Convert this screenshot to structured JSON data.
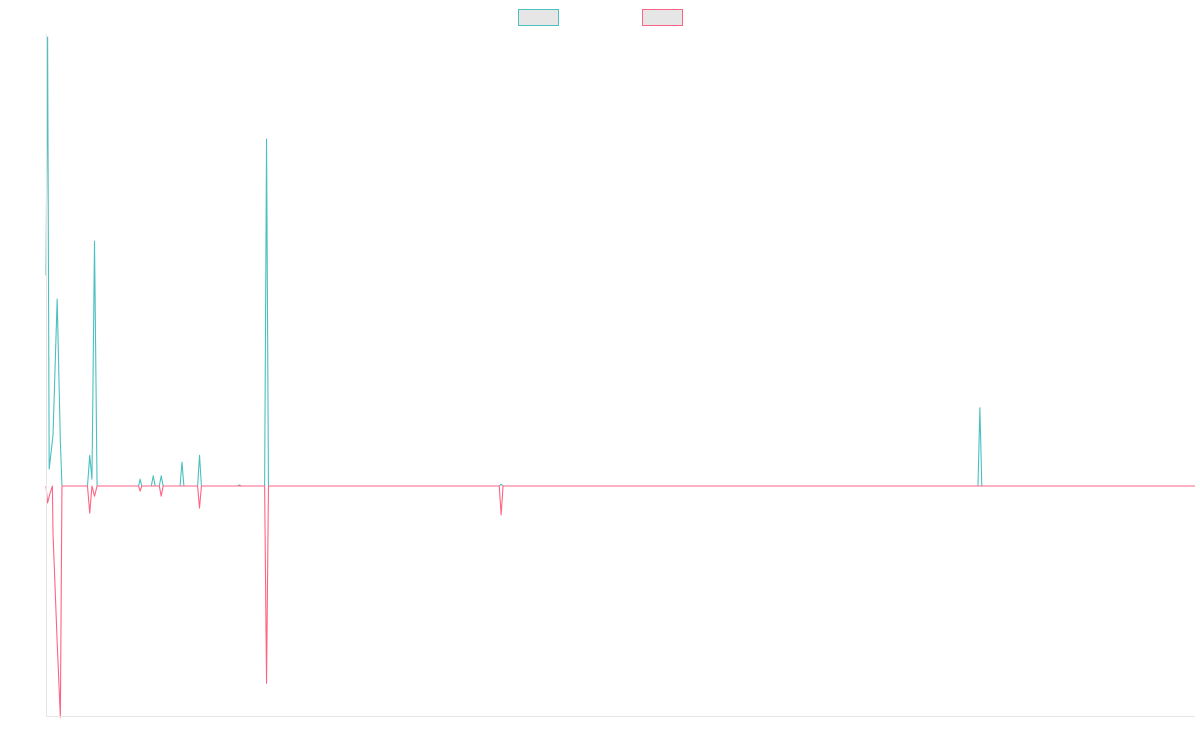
{
  "chart_data": {
    "type": "line",
    "title": "",
    "xlabel": "",
    "ylabel": "",
    "legend_position": "top-center",
    "grid": false,
    "x_range": [
      0,
      360
    ],
    "ylim": [
      -1.0,
      1.0
    ],
    "baseline": 0,
    "series": [
      {
        "color": "#4bc0c0",
        "legend_fill": "#e6e6e6",
        "points": [
          [
            0,
            0.62
          ],
          [
            0.5,
            1.32
          ],
          [
            1,
            0.05
          ],
          [
            2.2,
            0.15
          ],
          [
            3.5,
            0.55
          ],
          [
            4.5,
            0.13
          ],
          [
            5,
            0
          ],
          [
            13,
            0
          ],
          [
            13.7,
            0.09
          ],
          [
            14.4,
            0.02
          ],
          [
            15.2,
            0.72
          ],
          [
            16,
            0
          ],
          [
            29,
            0
          ],
          [
            29.5,
            0.02
          ],
          [
            30,
            0
          ],
          [
            33,
            0
          ],
          [
            33.6,
            0.03
          ],
          [
            34.2,
            0
          ],
          [
            35.5,
            0
          ],
          [
            36.1,
            0.03
          ],
          [
            36.7,
            0
          ],
          [
            42,
            0
          ],
          [
            42.6,
            0.07
          ],
          [
            43.2,
            0
          ],
          [
            47.5,
            0
          ],
          [
            48.1,
            0.09
          ],
          [
            48.7,
            0
          ],
          [
            60,
            0
          ],
          [
            60.6,
            0.003
          ],
          [
            61.2,
            0
          ],
          [
            68.5,
            0
          ],
          [
            69.1,
            1.02
          ],
          [
            69.7,
            0
          ],
          [
            142,
            0
          ],
          [
            142.6,
            0.005
          ],
          [
            143.2,
            0
          ],
          [
            292,
            0
          ],
          [
            292.6,
            0.23
          ],
          [
            293.2,
            0
          ],
          [
            360,
            0
          ]
        ]
      },
      {
        "color": "#ff6384",
        "legend_fill": "#e6e6e6",
        "points": [
          [
            0,
            0
          ],
          [
            0.5,
            -0.05
          ],
          [
            1,
            -0.03
          ],
          [
            2,
            0
          ],
          [
            2.2,
            -0.14
          ],
          [
            3.5,
            -0.46
          ],
          [
            4.5,
            -0.68
          ],
          [
            5,
            0
          ],
          [
            13,
            0
          ],
          [
            13.7,
            -0.08
          ],
          [
            14.4,
            0
          ],
          [
            15.2,
            -0.03
          ],
          [
            16,
            0
          ],
          [
            29,
            0
          ],
          [
            29.5,
            -0.015
          ],
          [
            30,
            0
          ],
          [
            35.5,
            0
          ],
          [
            36.1,
            -0.03
          ],
          [
            36.7,
            0
          ],
          [
            47.5,
            0
          ],
          [
            48.1,
            -0.065
          ],
          [
            48.7,
            0
          ],
          [
            68.5,
            0
          ],
          [
            69.1,
            -0.58
          ],
          [
            69.7,
            0
          ],
          [
            142,
            0
          ],
          [
            142.6,
            -0.085
          ],
          [
            143.2,
            0
          ],
          [
            360,
            0
          ]
        ]
      }
    ]
  }
}
